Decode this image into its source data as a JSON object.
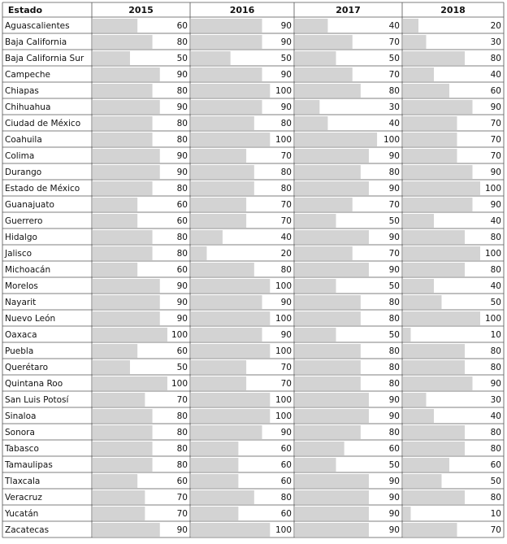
{
  "table": {
    "header": [
      "Estado",
      "2015",
      "2016",
      "2017",
      "2018"
    ],
    "rows": [
      [
        "Aguascalientes",
        60,
        90,
        40,
        20
      ],
      [
        "Baja California",
        80,
        90,
        70,
        30
      ],
      [
        "Baja California Sur",
        50,
        50,
        50,
        80
      ],
      [
        "Campeche",
        90,
        90,
        70,
        40
      ],
      [
        "Chiapas",
        80,
        100,
        80,
        60
      ],
      [
        "Chihuahua",
        90,
        90,
        30,
        90
      ],
      [
        "Ciudad de México",
        80,
        80,
        40,
        70
      ],
      [
        "Coahuila",
        80,
        100,
        100,
        70
      ],
      [
        "Colima",
        90,
        70,
        90,
        70
      ],
      [
        "Durango",
        90,
        80,
        80,
        90
      ],
      [
        "Estado de México",
        80,
        80,
        90,
        100
      ],
      [
        "Guanajuato",
        60,
        70,
        70,
        90
      ],
      [
        "Guerrero",
        60,
        70,
        50,
        40
      ],
      [
        "Hidalgo",
        80,
        40,
        90,
        80
      ],
      [
        "Jalisco",
        80,
        20,
        70,
        100
      ],
      [
        "Michoacán",
        60,
        80,
        90,
        80
      ],
      [
        "Morelos",
        90,
        100,
        50,
        40
      ],
      [
        "Nayarit",
        90,
        90,
        80,
        50
      ],
      [
        "Nuevo León",
        90,
        100,
        80,
        100
      ],
      [
        "Oaxaca",
        100,
        90,
        50,
        10
      ],
      [
        "Puebla",
        60,
        100,
        80,
        80
      ],
      [
        "Querétaro",
        50,
        70,
        80,
        80
      ],
      [
        "Quintana Roo",
        100,
        70,
        80,
        90
      ],
      [
        "San Luis Potosí",
        70,
        100,
        90,
        30
      ],
      [
        "Sinaloa",
        80,
        100,
        90,
        40
      ],
      [
        "Sonora",
        80,
        90,
        80,
        80
      ],
      [
        "Tabasco",
        80,
        60,
        60,
        80
      ],
      [
        "Tamaulipas",
        80,
        60,
        50,
        60
      ],
      [
        "Tlaxcala",
        60,
        60,
        90,
        50
      ],
      [
        "Veracruz",
        70,
        80,
        90,
        80
      ],
      [
        "Yucatán",
        70,
        60,
        90,
        10
      ],
      [
        "Zacatecas",
        90,
        100,
        90,
        70
      ]
    ]
  }
}
